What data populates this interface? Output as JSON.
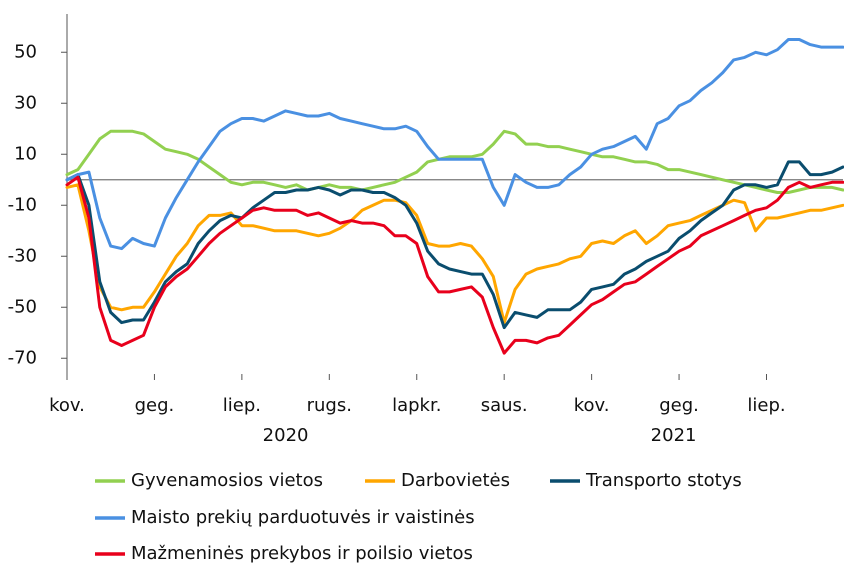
{
  "chart_data": {
    "type": "line",
    "x": [
      0,
      0.25,
      0.5,
      0.75,
      1,
      1.25,
      1.5,
      1.75,
      2,
      2.25,
      2.5,
      2.75,
      3,
      3.25,
      3.5,
      3.75,
      4,
      4.25,
      4.5,
      4.75,
      5,
      5.25,
      5.5,
      5.75,
      6,
      6.25,
      6.5,
      6.75,
      7,
      7.25,
      7.5,
      7.75,
      8,
      8.25,
      8.5,
      8.75,
      9,
      9.25,
      9.5,
      9.75,
      10,
      10.25,
      10.5,
      10.75,
      11,
      11.25,
      11.5,
      11.75,
      12,
      12.25,
      12.5,
      12.75,
      13,
      13.25,
      13.5,
      13.75,
      14,
      14.25,
      14.5,
      14.75,
      15,
      15.25,
      15.5,
      15.75,
      16,
      16.25,
      16.5,
      16.75,
      17,
      17.25,
      17.5,
      17.75
    ],
    "xlim": [
      0,
      17.75
    ],
    "xticks": [
      {
        "value": 0,
        "label": "kov."
      },
      {
        "value": 2,
        "label": "geg."
      },
      {
        "value": 4,
        "label": "liep."
      },
      {
        "value": 6,
        "label": "rugs."
      },
      {
        "value": 8,
        "label": "lapkr."
      },
      {
        "value": 10,
        "label": "saus."
      },
      {
        "value": 12,
        "label": "kov."
      },
      {
        "value": 14,
        "label": "geg."
      },
      {
        "value": 16,
        "label": "liep."
      }
    ],
    "x_groups": [
      "2020",
      "2021"
    ],
    "ylim": [
      -75,
      65
    ],
    "yticks": [
      50,
      30,
      10,
      -10,
      -30,
      -50,
      -70
    ],
    "reference_line": 0,
    "series": [
      {
        "name": "Gyvenamosios vietos",
        "color": "#92d050",
        "values": [
          2,
          4,
          10,
          16,
          19,
          19,
          19,
          18,
          15,
          12,
          11,
          10,
          8,
          5,
          2,
          -1,
          -2,
          -1,
          -1,
          -2,
          -3,
          -2,
          -4,
          -3,
          -2,
          -3,
          -3,
          -4,
          -3,
          -2,
          -1,
          1,
          3,
          7,
          8,
          9,
          9,
          9,
          10,
          14,
          19,
          18,
          14,
          14,
          13,
          13,
          12,
          11,
          10,
          9,
          9,
          8,
          7,
          7,
          6,
          4,
          4,
          3,
          2,
          1,
          0,
          -1,
          -2,
          -3,
          -4,
          -5,
          -5,
          -4,
          -3,
          -3,
          -3,
          -4
        ]
      },
      {
        "name": "Darbovietės",
        "color": "#ffa600",
        "values": [
          -3,
          -2,
          -20,
          -42,
          -50,
          -51,
          -50,
          -50,
          -44,
          -37,
          -30,
          -25,
          -18,
          -14,
          -14,
          -13,
          -18,
          -18,
          -19,
          -20,
          -20,
          -20,
          -21,
          -22,
          -21,
          -19,
          -16,
          -12,
          -10,
          -8,
          -8,
          -9,
          -14,
          -25,
          -26,
          -26,
          -25,
          -26,
          -31,
          -38,
          -56,
          -43,
          -37,
          -35,
          -34,
          -33,
          -31,
          -30,
          -25,
          -24,
          -25,
          -22,
          -20,
          -25,
          -22,
          -18,
          -17,
          -16,
          -14,
          -12,
          -10,
          -8,
          -9,
          -20,
          -15,
          -15,
          -14,
          -13,
          -12,
          -12,
          -11,
          -10
        ]
      },
      {
        "name": "Transporto stotys",
        "color": "#0a4d6e",
        "values": [
          0,
          2,
          -10,
          -40,
          -52,
          -56,
          -55,
          -55,
          -48,
          -40,
          -36,
          -33,
          -25,
          -20,
          -16,
          -14,
          -15,
          -11,
          -8,
          -5,
          -5,
          -4,
          -4,
          -3,
          -4,
          -6,
          -4,
          -4,
          -5,
          -5,
          -7,
          -10,
          -17,
          -28,
          -33,
          -35,
          -36,
          -37,
          -37,
          -45,
          -58,
          -52,
          -53,
          -54,
          -51,
          -51,
          -51,
          -48,
          -43,
          -42,
          -41,
          -37,
          -35,
          -32,
          -30,
          -28,
          -23,
          -20,
          -16,
          -13,
          -10,
          -4,
          -2,
          -2,
          -3,
          -2,
          7,
          7,
          2,
          2,
          3,
          5
        ]
      },
      {
        "name": "Maisto prekių parduotuvės ir vaistinės",
        "color": "#4a90e2",
        "values": [
          0,
          2,
          3,
          -15,
          -26,
          -27,
          -23,
          -25,
          -26,
          -15,
          -7,
          0,
          7,
          13,
          19,
          22,
          24,
          24,
          23,
          25,
          27,
          26,
          25,
          25,
          26,
          24,
          23,
          22,
          21,
          20,
          20,
          21,
          19,
          13,
          8,
          8,
          8,
          8,
          8,
          -3,
          -10,
          2,
          -1,
          -3,
          -3,
          -2,
          2,
          5,
          10,
          12,
          13,
          15,
          17,
          12,
          22,
          24,
          29,
          31,
          35,
          38,
          42,
          47,
          48,
          50,
          49,
          51,
          55,
          55,
          53,
          52,
          52,
          52
        ]
      },
      {
        "name": "Mažmeninės prekybos ir poilsio vietos",
        "color": "#e8001c",
        "values": [
          -2,
          1,
          -15,
          -50,
          -63,
          -65,
          -63,
          -61,
          -50,
          -42,
          -38,
          -35,
          -30,
          -25,
          -21,
          -18,
          -15,
          -12,
          -11,
          -12,
          -12,
          -12,
          -14,
          -13,
          -15,
          -17,
          -16,
          -17,
          -17,
          -18,
          -22,
          -22,
          -25,
          -38,
          -44,
          -44,
          -43,
          -42,
          -46,
          -58,
          -68,
          -63,
          -63,
          -64,
          -62,
          -61,
          -57,
          -53,
          -49,
          -47,
          -44,
          -41,
          -40,
          -37,
          -34,
          -31,
          -28,
          -26,
          -22,
          -20,
          -18,
          -16,
          -14,
          -12,
          -11,
          -8,
          -3,
          -1,
          -3,
          -2,
          -1,
          -1
        ]
      }
    ]
  }
}
